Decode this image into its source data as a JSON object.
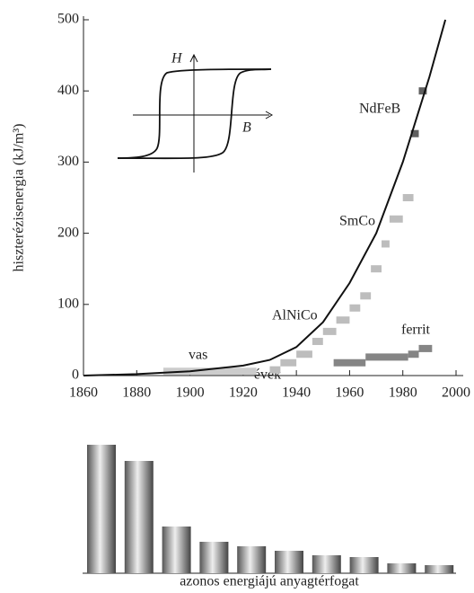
{
  "chart_data": [
    {
      "type": "line",
      "x_label": "évek",
      "y_label": "hiszterézisenergia (kJ/m³)",
      "xlim": [
        1860,
        2000
      ],
      "ylim": [
        0,
        500
      ],
      "xticks": [
        1860,
        1880,
        1900,
        1920,
        1940,
        1960,
        1980,
        2000
      ],
      "yticks": [
        0,
        100,
        200,
        300,
        400,
        500
      ],
      "curve": {
        "color": "#111111",
        "x": [
          1860,
          1880,
          1900,
          1920,
          1930,
          1940,
          1950,
          1960,
          1970,
          1980,
          1990,
          1996
        ],
        "values": [
          0,
          2,
          6,
          14,
          22,
          40,
          75,
          130,
          200,
          300,
          420,
          500
        ]
      },
      "series": [
        {
          "name": "vas",
          "color": "#cccccc",
          "bins": [
            1890,
            1925
          ],
          "values": [
            6
          ]
        },
        {
          "name": "AlNiCo",
          "color": "#bdbdbd",
          "bins": [
            1930,
            1934,
            1940,
            1946,
            1950,
            1955,
            1960,
            1964,
            1968
          ],
          "values": [
            8,
            18,
            30,
            48,
            62,
            78,
            95,
            112
          ]
        },
        {
          "name": "SmCo",
          "color": "#bdbdbd",
          "bins": [
            1968,
            1972,
            1975,
            1980,
            1984
          ],
          "values": [
            150,
            185,
            220,
            250
          ]
        },
        {
          "name": "NdFeB",
          "color": "#5f5f5f",
          "bins": [
            1983,
            1986,
            1989
          ],
          "values": [
            340,
            400
          ]
        },
        {
          "name": "ferrit",
          "color": "#858585",
          "bins": [
            1954,
            1966,
            1982,
            1986,
            1991
          ],
          "values": [
            18,
            26,
            30,
            38
          ]
        }
      ],
      "inset_labels": {
        "h": "H",
        "b": "B"
      }
    },
    {
      "type": "bar",
      "x_label": "azonos energiájú anyagtérfogat",
      "categories": [
        null,
        null,
        null,
        null,
        null,
        null,
        null,
        null,
        null,
        null
      ],
      "values": [
        143,
        125,
        52,
        35,
        30,
        25,
        20,
        18,
        11,
        9
      ],
      "ylim": [
        0,
        143
      ]
    }
  ]
}
